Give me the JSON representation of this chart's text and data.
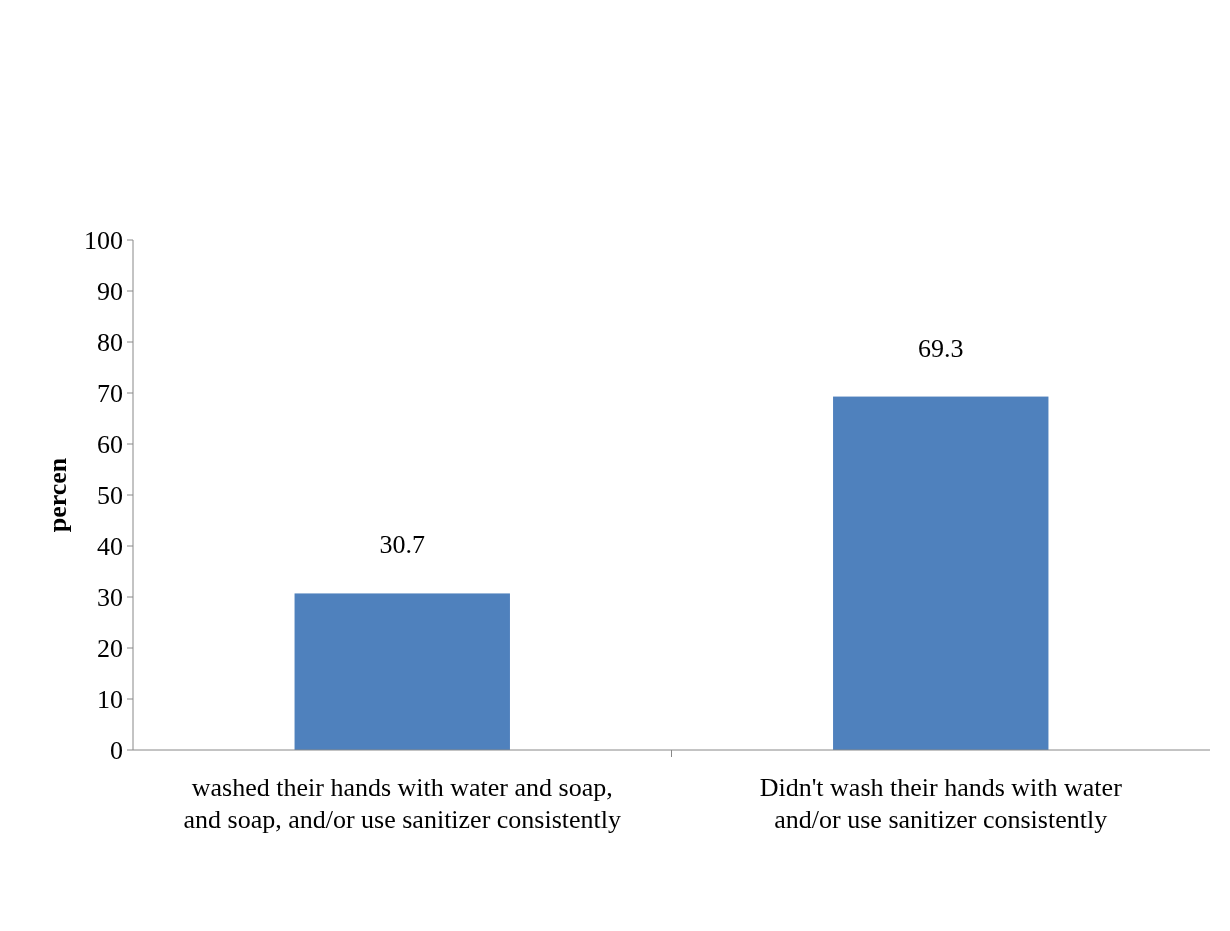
{
  "chart_data": {
    "type": "bar",
    "ylabel": "percen",
    "categories": [
      "washed their hands with water and soap, and soap, and/or use sanitizer consistently",
      "Didn't wash their hands with water and/or use sanitizer consistently"
    ],
    "values": [
      30.7,
      69.3
    ],
    "color": "#4f81bd",
    "ylim": [
      0,
      100
    ],
    "yticks": [
      0,
      10,
      20,
      30,
      40,
      50,
      60,
      70,
      80,
      90,
      100
    ],
    "data_labels": true
  }
}
